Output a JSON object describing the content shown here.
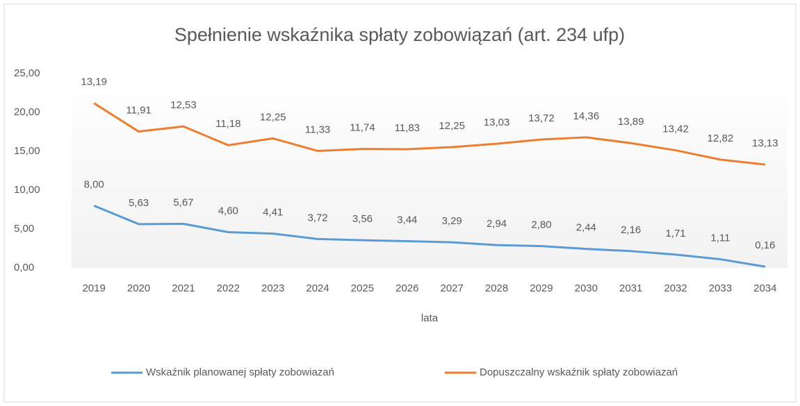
{
  "chart_data": {
    "type": "line",
    "stacked": true,
    "title": "Spełnienie  wskaźnika spłaty zobowiązań (art. 234 ufp)",
    "x_label": "lata",
    "categories": [
      "2019",
      "2020",
      "2021",
      "2022",
      "2023",
      "2024",
      "2025",
      "2026",
      "2027",
      "2028",
      "2029",
      "2030",
      "2031",
      "2032",
      "2033",
      "2034"
    ],
    "series": [
      {
        "name": "Wskaźnik planowanej spłaty zobowiazań",
        "color": "#5b9bd5",
        "values": [
          8.0,
          5.63,
          5.67,
          4.6,
          4.41,
          3.72,
          3.56,
          3.44,
          3.29,
          2.94,
          2.8,
          2.44,
          2.16,
          1.71,
          1.11,
          0.16
        ],
        "value_labels": [
          "8,00",
          "5,63",
          "5,67",
          "4,60",
          "4,41",
          "3,72",
          "3,56",
          "3,44",
          "3,29",
          "2,94",
          "2,80",
          "2,44",
          "2,16",
          "1,71",
          "1,11",
          "0,16"
        ]
      },
      {
        "name": "Dopuszczalny wskaźnik spłaty zobowiazań",
        "color": "#ed7d31",
        "values": [
          13.19,
          11.91,
          12.53,
          11.18,
          12.25,
          11.33,
          11.74,
          11.83,
          12.25,
          13.03,
          13.72,
          14.36,
          13.89,
          13.42,
          12.82,
          13.13
        ],
        "value_labels": [
          "13,19",
          "11,91",
          "12,53",
          "11,18",
          "12,25",
          "11,33",
          "11,74",
          "11,83",
          "12,25",
          "13,03",
          "13,72",
          "14,36",
          "13,89",
          "13,42",
          "12,82",
          "13,13"
        ]
      }
    ],
    "ylim": [
      0,
      25
    ],
    "yticks": [
      {
        "value": 0,
        "label": "0,00"
      },
      {
        "value": 5,
        "label": "5,00"
      },
      {
        "value": 10,
        "label": "10,00"
      },
      {
        "value": 15,
        "label": "15,00"
      },
      {
        "value": 20,
        "label": "20,00"
      },
      {
        "value": 25,
        "label": "25,00"
      }
    ],
    "legend": "bottom"
  }
}
